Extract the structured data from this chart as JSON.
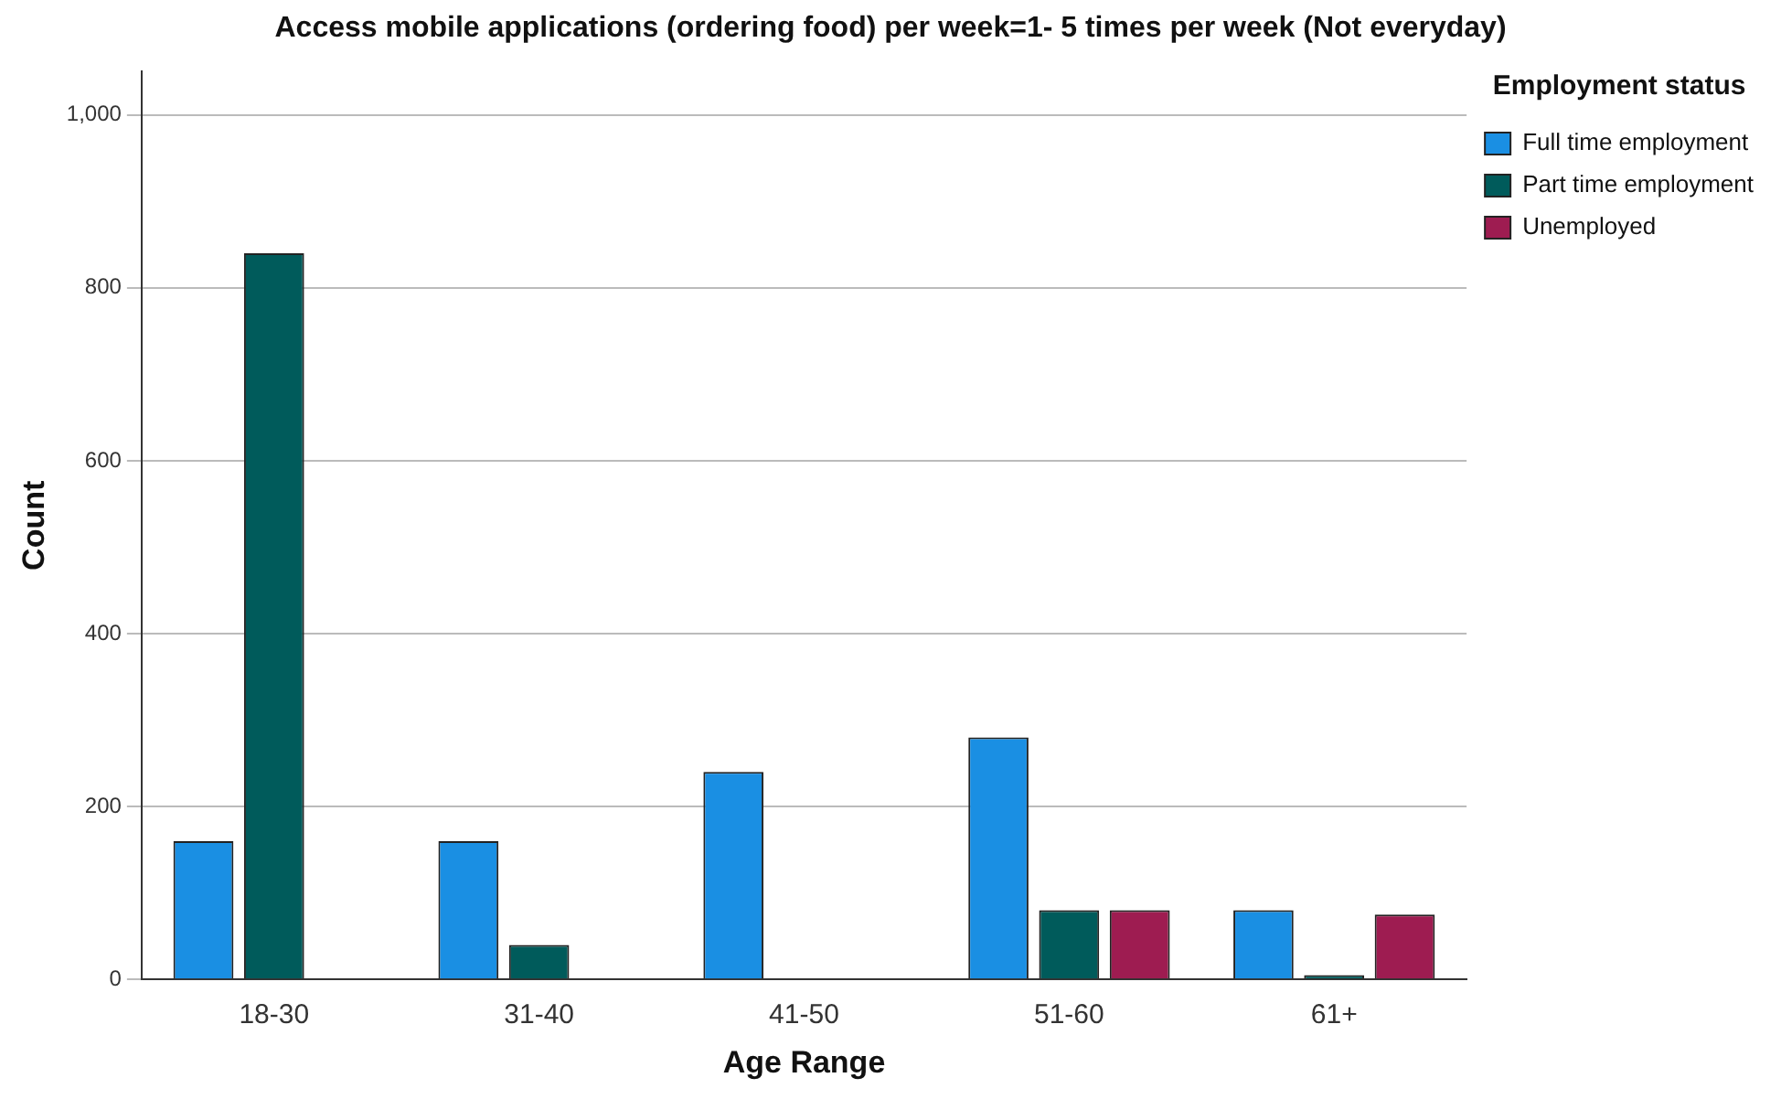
{
  "chart_data": {
    "type": "bar",
    "title": "Access mobile applications (ordering food) per week=1- 5 times per week (Not everyday)",
    "xlabel": "Age Range",
    "ylabel": "Count",
    "legend_title": "Employment status",
    "categories": [
      "18-30",
      "31-40",
      "41-50",
      "51-60",
      "61+"
    ],
    "series": [
      {
        "name": "Full time employment",
        "color": "#1a8fe3",
        "values": [
          160,
          160,
          240,
          280,
          80
        ]
      },
      {
        "name": "Part time employment",
        "color": "#005b5b",
        "values": [
          840,
          40,
          null,
          80,
          5
        ]
      },
      {
        "name": "Unemployed",
        "color": "#9e1c51",
        "values": [
          null,
          null,
          null,
          80,
          75
        ]
      }
    ],
    "ylim": [
      0,
      1050
    ],
    "yticks": [
      0,
      200,
      400,
      600,
      800,
      {
        "value": 1000,
        "label": "1,000"
      }
    ],
    "grid": "y",
    "legend": "top right"
  }
}
